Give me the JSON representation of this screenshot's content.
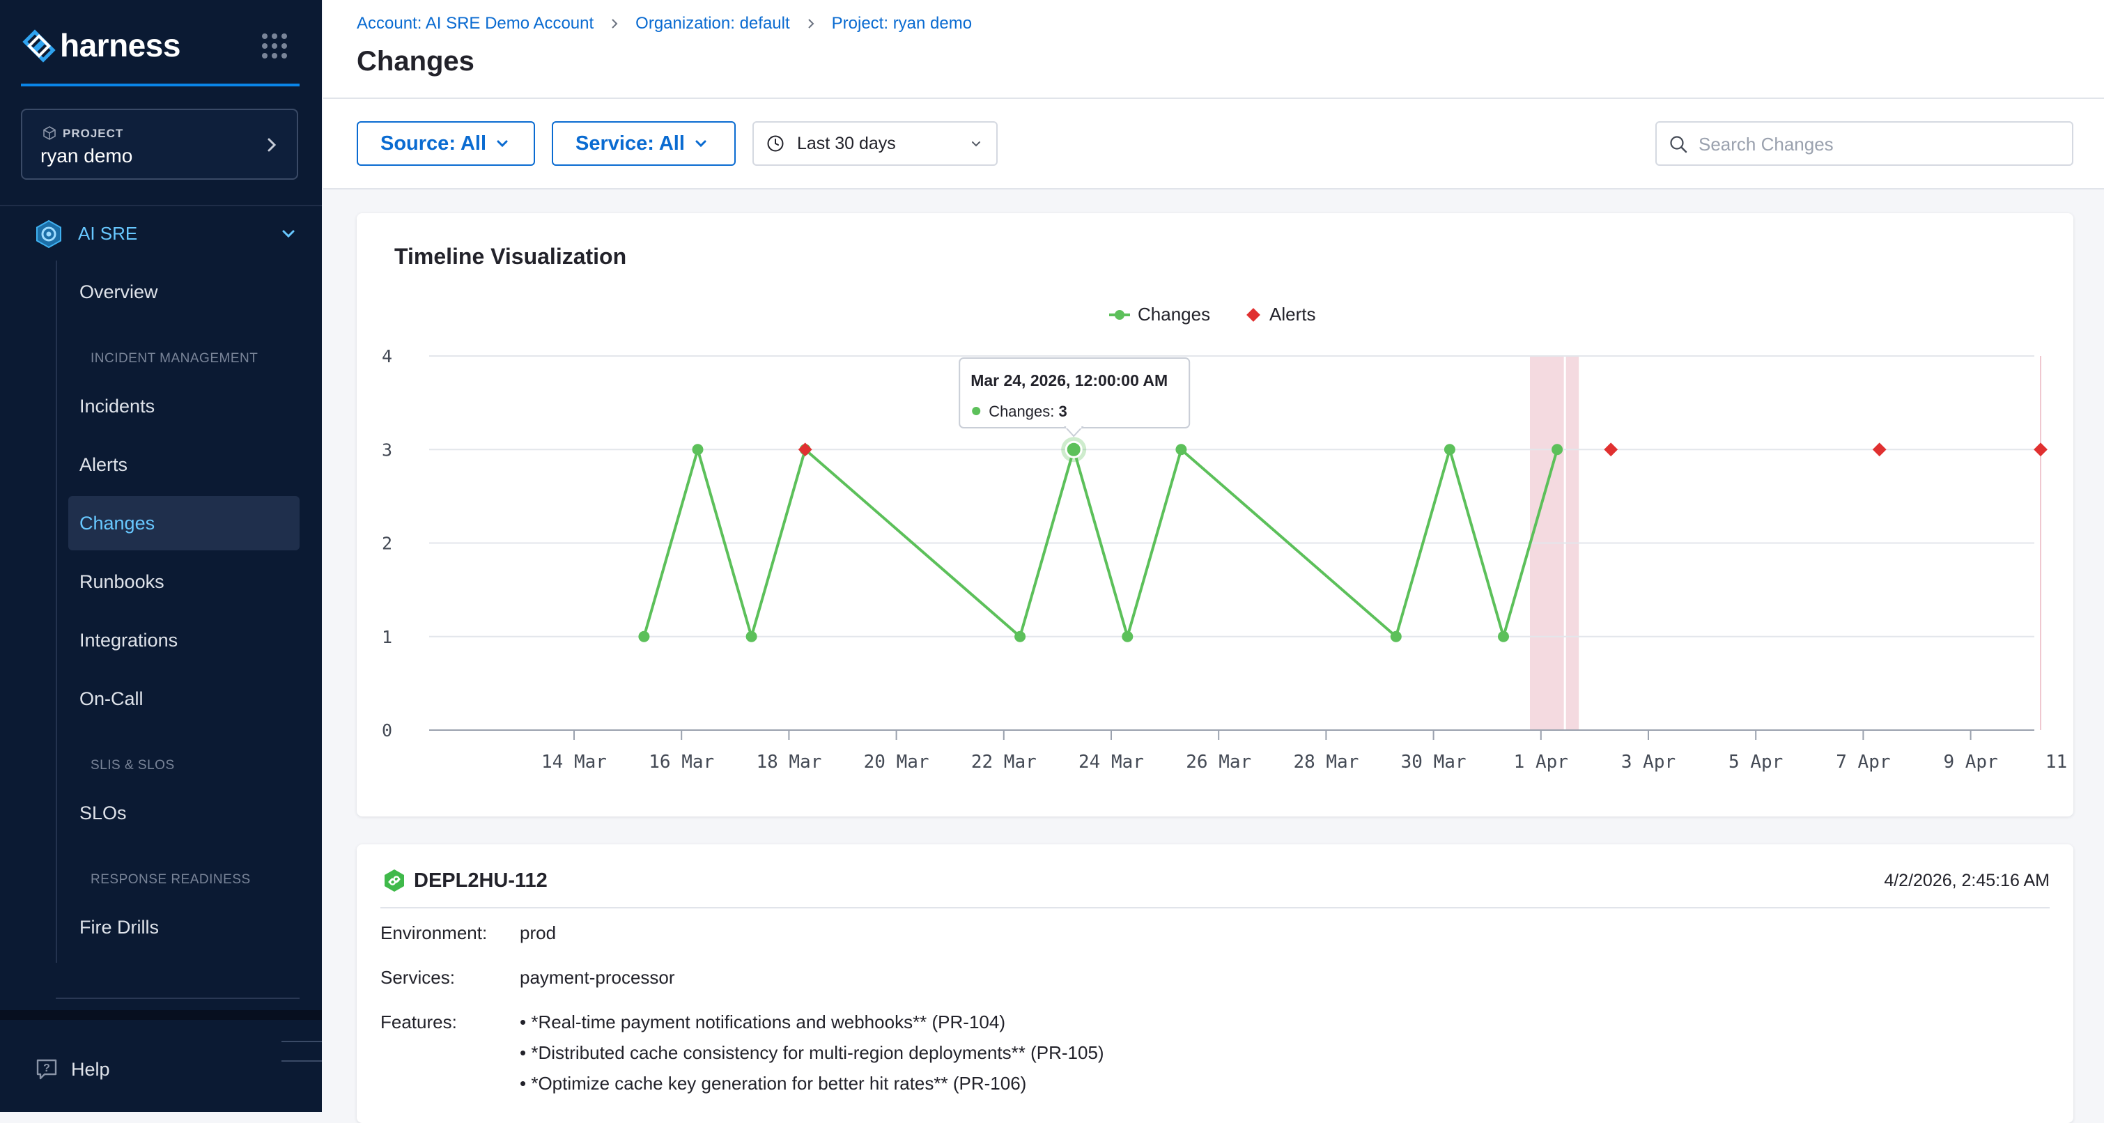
{
  "brand": {
    "name": "harness"
  },
  "project": {
    "label": "PROJECT",
    "name": "ryan demo"
  },
  "module": {
    "label": "AI SRE"
  },
  "nav": {
    "overview": "Overview",
    "section_incident": "INCIDENT MANAGEMENT",
    "incidents": "Incidents",
    "alerts": "Alerts",
    "changes": "Changes",
    "runbooks": "Runbooks",
    "integrations": "Integrations",
    "oncall": "On-Call",
    "section_slis": "SLIS & SLOS",
    "slos": "SLOs",
    "section_readiness": "RESPONSE READINESS",
    "firedrills": "Fire Drills",
    "active": "Changes"
  },
  "help": {
    "label": "Help"
  },
  "breadcrumbs": [
    "Account: AI SRE Demo Account",
    "Organization: default",
    "Project: ryan demo"
  ],
  "page": {
    "title": "Changes"
  },
  "filters": {
    "source": "Source: All",
    "service": "Service: All",
    "date_range": "Last 30 days",
    "search_placeholder": "Search Changes",
    "search_value": ""
  },
  "chart_data": {
    "type": "line",
    "title": "Timeline Visualization",
    "legend": {
      "position": "top-center",
      "entries": [
        "Changes",
        "Alerts"
      ]
    },
    "x_tick_labels": [
      "14 Mar",
      "16 Mar",
      "18 Mar",
      "20 Mar",
      "22 Mar",
      "24 Mar",
      "26 Mar",
      "28 Mar",
      "30 Mar",
      "1 Apr",
      "3 Apr",
      "5 Apr",
      "7 Apr",
      "9 Apr",
      "11 Apr"
    ],
    "y_ticks": [
      0,
      1,
      2,
      3,
      4
    ],
    "ylim": [
      0,
      4
    ],
    "xlim": [
      "2026-03-12",
      "2026-04-12"
    ],
    "grid": true,
    "series": [
      {
        "name": "Changes",
        "kind": "line",
        "color": "#5cc05a",
        "points": [
          {
            "x": "2026-03-16",
            "y": 1
          },
          {
            "x": "2026-03-17",
            "y": 3
          },
          {
            "x": "2026-03-18",
            "y": 1
          },
          {
            "x": "2026-03-19",
            "y": 3
          },
          {
            "x": "2026-03-23",
            "y": 1
          },
          {
            "x": "2026-03-24",
            "y": 3
          },
          {
            "x": "2026-03-25",
            "y": 1
          },
          {
            "x": "2026-03-26",
            "y": 3
          },
          {
            "x": "2026-03-30",
            "y": 1
          },
          {
            "x": "2026-03-31",
            "y": 3
          },
          {
            "x": "2026-04-01",
            "y": 1
          },
          {
            "x": "2026-04-02",
            "y": 3
          }
        ]
      },
      {
        "name": "Alerts",
        "kind": "scatter",
        "color": "#e03030",
        "points": [
          {
            "x": "2026-03-19",
            "y": 3
          },
          {
            "x": "2026-04-03",
            "y": 3
          },
          {
            "x": "2026-04-08",
            "y": 3
          },
          {
            "x": "2026-04-11",
            "y": 3
          }
        ]
      }
    ],
    "highlight_ranges": [
      {
        "from": "2026-04-01",
        "to": "2026-04-03"
      }
    ],
    "colors": {
      "highlight": "#f2d3da",
      "marker_line": "#f0c8d0"
    },
    "tooltip": {
      "title": "Mar 24, 2026, 12:00:00 AM",
      "series_label": "Changes:",
      "value": "3",
      "point": {
        "x": "2026-03-24",
        "y": 3
      }
    }
  },
  "change": {
    "id": "DEPL2HU-112",
    "timestamp": "4/2/2026, 2:45:16 AM",
    "environment_label": "Environment:",
    "environment": "prod",
    "services_label": "Services:",
    "services": "payment-processor",
    "features_label": "Features:",
    "features": [
      "• *Real-time payment notifications and webhooks** (PR-104)",
      "• *Distributed cache consistency for multi-region deployments** (PR-105)",
      "• *Optimize cache key generation for better hit rates** (PR-106)"
    ]
  },
  "colors": {
    "sidebar_bg": "#0b1a33",
    "accent": "#0a6bd1",
    "active_nav": "#68c8ff",
    "changes": "#5cc05a",
    "alerts": "#e03030"
  }
}
